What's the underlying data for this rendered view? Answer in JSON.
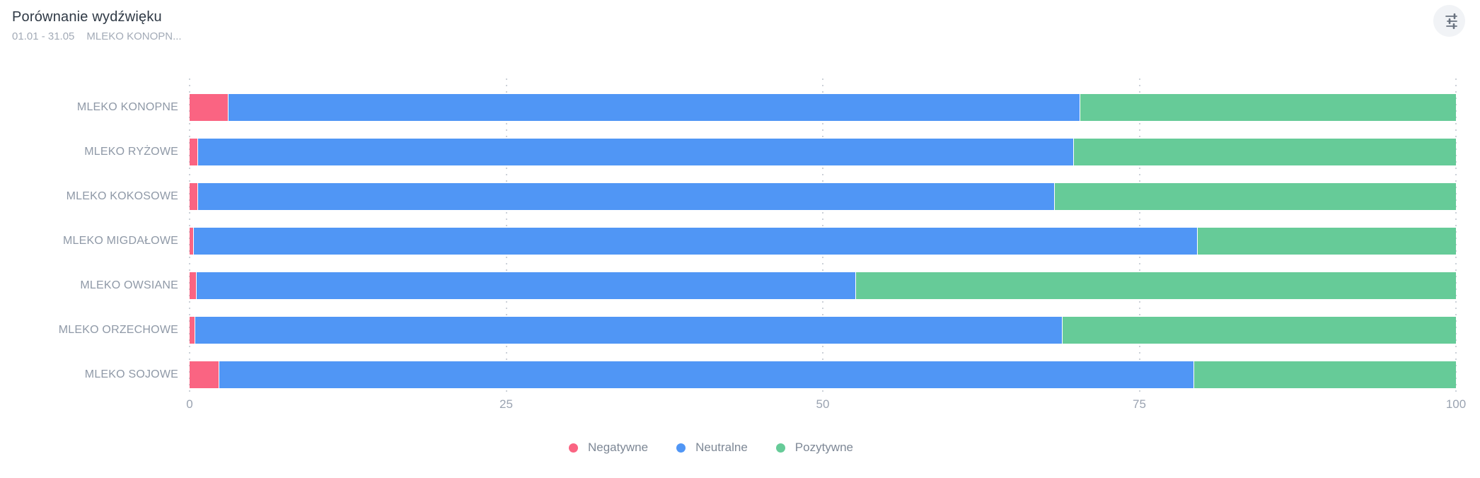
{
  "header": {
    "title": "Porównanie wydźwięku",
    "date_range": "01.01 - 31.05",
    "filter_label": "MLEKO KONOPN..."
  },
  "controls": {
    "settings_icon": "sliders-icon"
  },
  "chart_data": {
    "type": "bar",
    "orientation": "horizontal",
    "stacked": true,
    "unit": "percent",
    "title": "Porównanie wydźwięku",
    "categories": [
      "MLEKO KONOPNE",
      "MLEKO RYŻOWE",
      "MLEKO KOKOSOWE",
      "MLEKO MIGDAŁOWE",
      "MLEKO OWSIANE",
      "MLEKO ORZECHOWE",
      "MLEKO SOJOWE"
    ],
    "series": [
      {
        "name": "Negatywne",
        "color": "#fa6482",
        "values": [
          3.0,
          0.6,
          0.6,
          0.3,
          0.5,
          0.4,
          2.3
        ]
      },
      {
        "name": "Neutralne",
        "color": "#5096f5",
        "values": [
          67.3,
          69.2,
          67.7,
          79.3,
          52.1,
          68.5,
          77.0
        ]
      },
      {
        "name": "Pozytywne",
        "color": "#66cb98",
        "values": [
          29.7,
          30.2,
          31.7,
          20.4,
          47.4,
          31.1,
          20.7
        ]
      }
    ],
    "xlabel": "",
    "ylabel": "",
    "x_ticks": [
      0,
      25,
      50,
      75,
      100
    ],
    "xlim": [
      0,
      100
    ],
    "grid": "vertical-dotted",
    "legend_position": "bottom"
  },
  "colors": {
    "negative": "#fa6482",
    "neutral": "#5096f5",
    "positive": "#66cb98",
    "grid": "#ccd1d8",
    "title_text": "#2f3945",
    "muted_text": "#9aa3b1"
  }
}
